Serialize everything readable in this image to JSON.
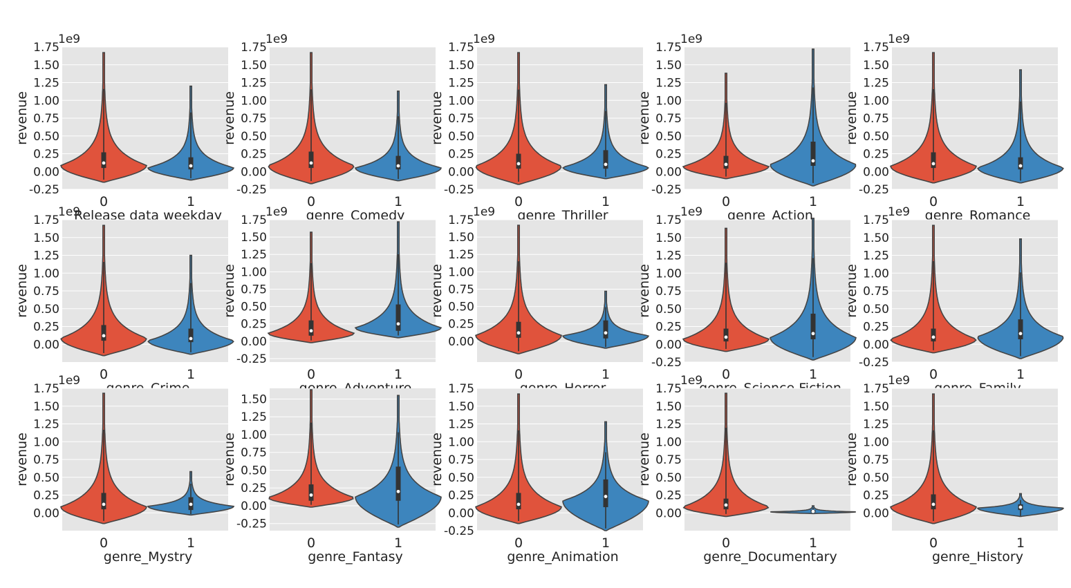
{
  "chart_data": {
    "type": "violin",
    "colors": {
      "0": "#e0533c",
      "1": "#3d85bd"
    },
    "subplots": [
      {
        "xlabel": "Release data weekday",
        "ylabel": "revenue",
        "offset_text": "1e9",
        "yticks": [
          "1.75",
          "1.50",
          "1.25",
          "1.00",
          "0.75",
          "0.50",
          "0.25",
          "0.00",
          "-0.25"
        ],
        "ylim": [
          -0.25,
          1.75
        ],
        "categories": [
          "0",
          "1"
        ],
        "violins": [
          {
            "category": "0",
            "min": -0.15,
            "max": 1.67,
            "q1": 0.05,
            "median": 0.12,
            "q3": 0.27
          },
          {
            "category": "1",
            "min": -0.12,
            "max": 1.2,
            "q1": 0.03,
            "median": 0.08,
            "q3": 0.2
          }
        ]
      },
      {
        "xlabel": "genre_Comedy",
        "ylabel": "revenue",
        "offset_text": "1e9",
        "yticks": [
          "1.75",
          "1.50",
          "1.25",
          "1.00",
          "0.75",
          "0.50",
          "0.25",
          "0.00",
          "-0.25"
        ],
        "ylim": [
          -0.25,
          1.75
        ],
        "categories": [
          "0",
          "1"
        ],
        "violins": [
          {
            "category": "0",
            "min": -0.17,
            "max": 1.67,
            "q1": 0.05,
            "median": 0.12,
            "q3": 0.28
          },
          {
            "category": "1",
            "min": -0.13,
            "max": 1.13,
            "q1": 0.03,
            "median": 0.08,
            "q3": 0.22
          }
        ]
      },
      {
        "xlabel": "genre_Thriller",
        "ylabel": "revenue",
        "offset_text": "1e9",
        "yticks": [
          "1.75",
          "1.50",
          "1.25",
          "1.00",
          "0.75",
          "0.50",
          "0.25",
          "0.00",
          "-0.25"
        ],
        "ylim": [
          -0.25,
          1.75
        ],
        "categories": [
          "0",
          "1"
        ],
        "violins": [
          {
            "category": "0",
            "min": -0.18,
            "max": 1.67,
            "q1": 0.04,
            "median": 0.11,
            "q3": 0.25
          },
          {
            "category": "1",
            "min": -0.1,
            "max": 1.22,
            "q1": 0.04,
            "median": 0.1,
            "q3": 0.3
          }
        ]
      },
      {
        "xlabel": "genre_Action",
        "ylabel": "revenue",
        "offset_text": "1e9",
        "yticks": [
          "1.75",
          "1.50",
          "1.25",
          "1.00",
          "0.75",
          "0.50",
          "0.25",
          "0.00",
          "-0.25"
        ],
        "ylim": [
          -0.25,
          1.75
        ],
        "categories": [
          "0",
          "1"
        ],
        "violins": [
          {
            "category": "0",
            "min": -0.1,
            "max": 1.38,
            "q1": 0.04,
            "median": 0.1,
            "q3": 0.22
          },
          {
            "category": "1",
            "min": -0.2,
            "max": 1.72,
            "q1": 0.08,
            "median": 0.15,
            "q3": 0.42
          }
        ]
      },
      {
        "xlabel": "genre_Romance",
        "ylabel": "revenue",
        "offset_text": "1e9",
        "yticks": [
          "1.75",
          "1.50",
          "1.25",
          "1.00",
          "0.75",
          "0.50",
          "0.25",
          "0.00",
          "-0.25"
        ],
        "ylim": [
          -0.25,
          1.75
        ],
        "categories": [
          "0",
          "1"
        ],
        "violins": [
          {
            "category": "0",
            "min": -0.16,
            "max": 1.67,
            "q1": 0.05,
            "median": 0.11,
            "q3": 0.27
          },
          {
            "category": "1",
            "min": -0.16,
            "max": 1.43,
            "q1": 0.03,
            "median": 0.08,
            "q3": 0.2
          }
        ]
      },
      {
        "xlabel": "genre_Crime",
        "ylabel": "revenue",
        "offset_text": "1e9",
        "yticks": [
          "1.75",
          "1.50",
          "1.25",
          "1.00",
          "0.75",
          "0.50",
          "0.25",
          "0.00"
        ],
        "ylim": [
          -0.25,
          1.75
        ],
        "categories": [
          "0",
          "1"
        ],
        "violins": [
          {
            "category": "0",
            "min": -0.16,
            "max": 1.67,
            "q1": 0.05,
            "median": 0.12,
            "q3": 0.27
          },
          {
            "category": "1",
            "min": -0.14,
            "max": 1.25,
            "q1": 0.03,
            "median": 0.08,
            "q3": 0.22
          }
        ]
      },
      {
        "xlabel": "genre_Adventure",
        "ylabel": "revenue",
        "offset_text": "1e9",
        "yticks": [
          "1.75",
          "1.50",
          "1.25",
          "1.00",
          "0.75",
          "0.50",
          "0.25",
          "0.00",
          "-0.25"
        ],
        "ylim": [
          -0.3,
          1.75
        ],
        "categories": [
          "0",
          "1"
        ],
        "violins": [
          {
            "category": "0",
            "min": -0.02,
            "max": 1.57,
            "q1": 0.08,
            "median": 0.15,
            "q3": 0.3
          },
          {
            "category": "1",
            "min": 0.05,
            "max": 1.72,
            "q1": 0.15,
            "median": 0.25,
            "q3": 0.53
          }
        ]
      },
      {
        "xlabel": "genre_Horror",
        "ylabel": "revenue",
        "offset_text": "1e9",
        "yticks": [
          "1.75",
          "1.50",
          "1.25",
          "1.00",
          "0.75",
          "0.50",
          "0.25",
          "0.00"
        ],
        "ylim": [
          -0.3,
          1.75
        ],
        "categories": [
          "0",
          "1"
        ],
        "violins": [
          {
            "category": "0",
            "min": -0.18,
            "max": 1.67,
            "q1": 0.05,
            "median": 0.12,
            "q3": 0.28
          },
          {
            "category": "1",
            "min": -0.1,
            "max": 0.72,
            "q1": 0.04,
            "median": 0.12,
            "q3": 0.3
          }
        ]
      },
      {
        "xlabel": "genre_Science Fiction",
        "ylabel": "revenue",
        "offset_text": "1e9",
        "yticks": [
          "1.75",
          "1.50",
          "1.25",
          "1.00",
          "0.75",
          "0.50",
          "0.25",
          "0.00",
          "-0.25"
        ],
        "ylim": [
          -0.25,
          1.75
        ],
        "categories": [
          "0",
          "1"
        ],
        "violins": [
          {
            "category": "0",
            "min": -0.1,
            "max": 1.63,
            "q1": 0.04,
            "median": 0.1,
            "q3": 0.22
          },
          {
            "category": "1",
            "min": -0.22,
            "max": 1.77,
            "q1": 0.07,
            "median": 0.15,
            "q3": 0.43
          }
        ]
      },
      {
        "xlabel": "genre_Family",
        "ylabel": "revenue",
        "offset_text": "1e9",
        "yticks": [
          "1.75",
          "1.50",
          "1.25",
          "1.00",
          "0.75",
          "0.50",
          "0.25",
          "0.00",
          "-0.25"
        ],
        "ylim": [
          -0.25,
          1.75
        ],
        "categories": [
          "0",
          "1"
        ],
        "violins": [
          {
            "category": "0",
            "min": -0.12,
            "max": 1.67,
            "q1": 0.04,
            "median": 0.1,
            "q3": 0.22
          },
          {
            "category": "1",
            "min": -0.2,
            "max": 1.48,
            "q1": 0.07,
            "median": 0.15,
            "q3": 0.35
          }
        ]
      },
      {
        "xlabel": "genre_Mystry",
        "ylabel": "revenue",
        "offset_text": "1e9",
        "yticks": [
          "1.75",
          "1.50",
          "1.25",
          "1.00",
          "0.75",
          "0.50",
          "0.25",
          "0.00"
        ],
        "ylim": [
          -0.25,
          1.75
        ],
        "categories": [
          "0",
          "1"
        ],
        "violins": [
          {
            "category": "0",
            "min": -0.15,
            "max": 1.68,
            "q1": 0.05,
            "median": 0.12,
            "q3": 0.28
          },
          {
            "category": "1",
            "min": -0.03,
            "max": 0.58,
            "q1": 0.04,
            "median": 0.12,
            "q3": 0.22
          }
        ]
      },
      {
        "xlabel": "genre_Fantasy",
        "ylabel": "revenue",
        "offset_text": "",
        "yticks": [
          "1.50",
          "1.25",
          "1.00",
          "0.75",
          "0.50",
          "0.25",
          "0.00",
          "-0.25"
        ],
        "ylim": [
          -0.35,
          1.65
        ],
        "categories": [
          "0",
          "1"
        ],
        "violins": [
          {
            "category": "0",
            "min": -0.02,
            "max": 1.63,
            "q1": 0.07,
            "median": 0.15,
            "q3": 0.3
          },
          {
            "category": "1",
            "min": -0.3,
            "max": 1.55,
            "q1": 0.07,
            "median": 0.2,
            "q3": 0.55
          }
        ]
      },
      {
        "xlabel": "genre_Animation",
        "ylabel": "revenue",
        "offset_text": "",
        "yticks": [
          "1.75",
          "1.50",
          "1.25",
          "1.00",
          "0.75",
          "0.50",
          "0.25",
          "0.00",
          "-0.25"
        ],
        "ylim": [
          -0.25,
          1.75
        ],
        "categories": [
          "0",
          "1"
        ],
        "violins": [
          {
            "category": "0",
            "min": -0.15,
            "max": 1.67,
            "q1": 0.05,
            "median": 0.12,
            "q3": 0.28
          },
          {
            "category": "1",
            "min": -0.25,
            "max": 1.28,
            "q1": 0.08,
            "median": 0.23,
            "q3": 0.47
          }
        ]
      },
      {
        "xlabel": "genre_Documentary",
        "ylabel": "revenue",
        "offset_text": "1e9",
        "yticks": [
          "1.75",
          "1.50",
          "1.25",
          "1.00",
          "0.75",
          "0.50",
          "0.25",
          "0.00"
        ],
        "ylim": [
          -0.25,
          1.75
        ],
        "categories": [
          "0",
          "1"
        ],
        "violins": [
          {
            "category": "0",
            "min": -0.05,
            "max": 1.68,
            "q1": 0.05,
            "median": 0.11,
            "q3": 0.2
          },
          {
            "category": "1",
            "min": -0.01,
            "max": 0.1,
            "q1": 0.005,
            "median": 0.02,
            "q3": 0.04
          }
        ]
      },
      {
        "xlabel": "genre_History",
        "ylabel": "revenue",
        "offset_text": "1e9",
        "yticks": [
          "1.75",
          "1.50",
          "1.25",
          "1.00",
          "0.75",
          "0.50",
          "0.25",
          "0.00"
        ],
        "ylim": [
          -0.25,
          1.75
        ],
        "categories": [
          "0",
          "1"
        ],
        "violins": [
          {
            "category": "0",
            "min": -0.15,
            "max": 1.67,
            "q1": 0.05,
            "median": 0.12,
            "q3": 0.26
          },
          {
            "category": "1",
            "min": -0.05,
            "max": 0.27,
            "q1": 0.04,
            "median": 0.08,
            "q3": 0.12
          }
        ]
      }
    ]
  }
}
